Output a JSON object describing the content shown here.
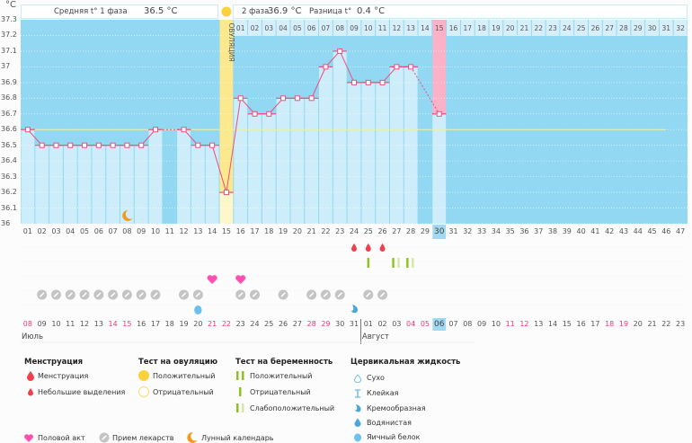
{
  "chart_data": {
    "type": "line",
    "unit": "°C",
    "ylim": [
      36,
      37.3
    ],
    "yticks": [
      "37.3",
      "37.2",
      "37.1",
      "37",
      "36.9",
      "36.8",
      "36.7",
      "36.6",
      "36.5",
      "36.4",
      "36.3",
      "36.2",
      "36.1",
      "36"
    ],
    "cycle_days": [
      "01",
      "02",
      "03",
      "04",
      "05",
      "06",
      "07",
      "08",
      "09",
      "10",
      "11",
      "12",
      "13",
      "14",
      "15",
      "16",
      "17",
      "18",
      "19",
      "20",
      "21",
      "22",
      "23",
      "24",
      "25",
      "26",
      "27",
      "28",
      "29",
      "30",
      "31",
      "32",
      "33",
      "34",
      "35",
      "36",
      "37",
      "38",
      "39",
      "40",
      "41",
      "42",
      "43",
      "44",
      "45",
      "46",
      "47"
    ],
    "temperatures": [
      36.6,
      36.5,
      36.5,
      36.5,
      36.5,
      36.5,
      36.5,
      36.5,
      36.5,
      36.6,
      null,
      36.6,
      36.5,
      36.5,
      36.2,
      36.8,
      36.7,
      36.7,
      36.8,
      36.8,
      36.8,
      37.0,
      37.1,
      36.9,
      36.9,
      36.9,
      37.0,
      37.0,
      null,
      36.7
    ],
    "coverline": 36.6,
    "ovulation_day": 15,
    "ovulation_label": "ОВУЛЯЦИЯ",
    "expected_period_day": 15,
    "current_cycle_day": 30,
    "phase2_days": [
      "01",
      "02",
      "03",
      "04",
      "05",
      "06",
      "07",
      "08",
      "09",
      "10",
      "11",
      "12",
      "13",
      "14",
      "15",
      "16",
      "17",
      "18",
      "19",
      "20",
      "21",
      "22",
      "23",
      "24",
      "25",
      "26",
      "27",
      "28",
      "29",
      "30",
      "31",
      "32"
    ],
    "phase1_label": "Средняя t° 1 фаза",
    "phase1_value": "36.5 °C",
    "phase2_label": "2 фаза",
    "phase2_value": "36.9 °C",
    "diff_label": "Разница t°",
    "diff_value": "0.4 °C",
    "dates": [
      "08",
      "09",
      "10",
      "11",
      "12",
      "13",
      "14",
      "15",
      "16",
      "17",
      "18",
      "19",
      "20",
      "21",
      "22",
      "23",
      "24",
      "25",
      "26",
      "27",
      "28",
      "29",
      "30",
      "31",
      "01",
      "02",
      "03",
      "04",
      "05",
      "06",
      "07",
      "08",
      "09",
      "10",
      "11",
      "12",
      "13",
      "14",
      "15",
      "16",
      "17",
      "18",
      "19",
      "20",
      "21",
      "22",
      "23"
    ],
    "weekend_dates_index": [
      0,
      6,
      7,
      13,
      14,
      20,
      21,
      27,
      28,
      34,
      35,
      41,
      42
    ],
    "months": [
      {
        "label": "Июль",
        "start_index": 0
      },
      {
        "label": "Август",
        "start_index": 24
      }
    ],
    "events": {
      "menstruation_days": [
        24,
        25,
        26
      ],
      "moon_days": [
        8
      ],
      "pregnancy_negative_days": [
        25
      ],
      "pregnancy_weak_positive_days": [
        27,
        28
      ],
      "intercourse_days": [
        14,
        16
      ],
      "medication_days": [
        2,
        3,
        4,
        5,
        6,
        7,
        8,
        9,
        10,
        12,
        13,
        16,
        17,
        19,
        21,
        22,
        23,
        25,
        26
      ],
      "fluid_egg_white_days": [
        13
      ],
      "fluid_creamy_days": [
        24
      ]
    },
    "colors": {
      "bg": "#92d8f3",
      "bar": "#cdedfb",
      "line": "#ec4e7e",
      "ovulation": "#fde98d",
      "period": "#fbb1c6",
      "current": "#9fd9f2",
      "coverline": "#f2f0a0"
    }
  },
  "legend": {
    "menstruation": {
      "title": "Менструация",
      "items": [
        "Менструация",
        "Небольшие выделения"
      ]
    },
    "ovulation_test": {
      "title": "Тест на овуляцию",
      "items": [
        "Положительный",
        "Отрицательный"
      ]
    },
    "pregnancy_test": {
      "title": "Тест на беременность",
      "items": [
        "Положительный",
        "Отрицательный",
        "Слабоположительный"
      ]
    },
    "cervical": {
      "title": "Цервикальная жидкость",
      "items": [
        "Сухо",
        "Клейкая",
        "Кремообразная",
        "Водянистая",
        "Яичный белок"
      ]
    },
    "bottom": [
      "Половой акт",
      "Прием лекарств",
      "Лунный календарь"
    ]
  }
}
